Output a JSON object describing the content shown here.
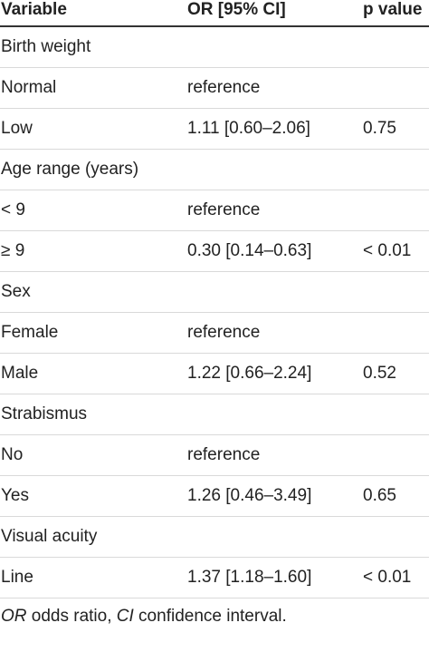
{
  "header": {
    "variable": "Variable",
    "or": "OR [95% CI]",
    "p": "p value"
  },
  "rows": [
    {
      "variable": "Birth weight",
      "or": "",
      "p": ""
    },
    {
      "variable": "Normal",
      "or": "reference",
      "p": ""
    },
    {
      "variable": "Low",
      "or": "1.11 [0.60–2.06]",
      "p": "0.75"
    },
    {
      "variable": "Age range (years)",
      "or": "",
      "p": ""
    },
    {
      "variable": "< 9",
      "or": "reference",
      "p": ""
    },
    {
      "variable": "≥ 9",
      "or": "0.30 [0.14–0.63]",
      "p": "< 0.01"
    },
    {
      "variable": "Sex",
      "or": "",
      "p": ""
    },
    {
      "variable": "Female",
      "or": "reference",
      "p": ""
    },
    {
      "variable": "Male",
      "or": "1.22 [0.66–2.24]",
      "p": "0.52"
    },
    {
      "variable": "Strabismus",
      "or": "",
      "p": ""
    },
    {
      "variable": "No",
      "or": "reference",
      "p": ""
    },
    {
      "variable": "Yes",
      "or": "1.26 [0.46–3.49]",
      "p": "0.65"
    },
    {
      "variable": "Visual acuity",
      "or": "",
      "p": ""
    },
    {
      "variable": "Line",
      "or": "1.37 [1.18–1.60]",
      "p": "< 0.01"
    }
  ],
  "footnote": {
    "or_abbr": "OR",
    "or_text": " odds ratio, ",
    "ci_abbr": "CI",
    "ci_text": " confidence interval."
  }
}
